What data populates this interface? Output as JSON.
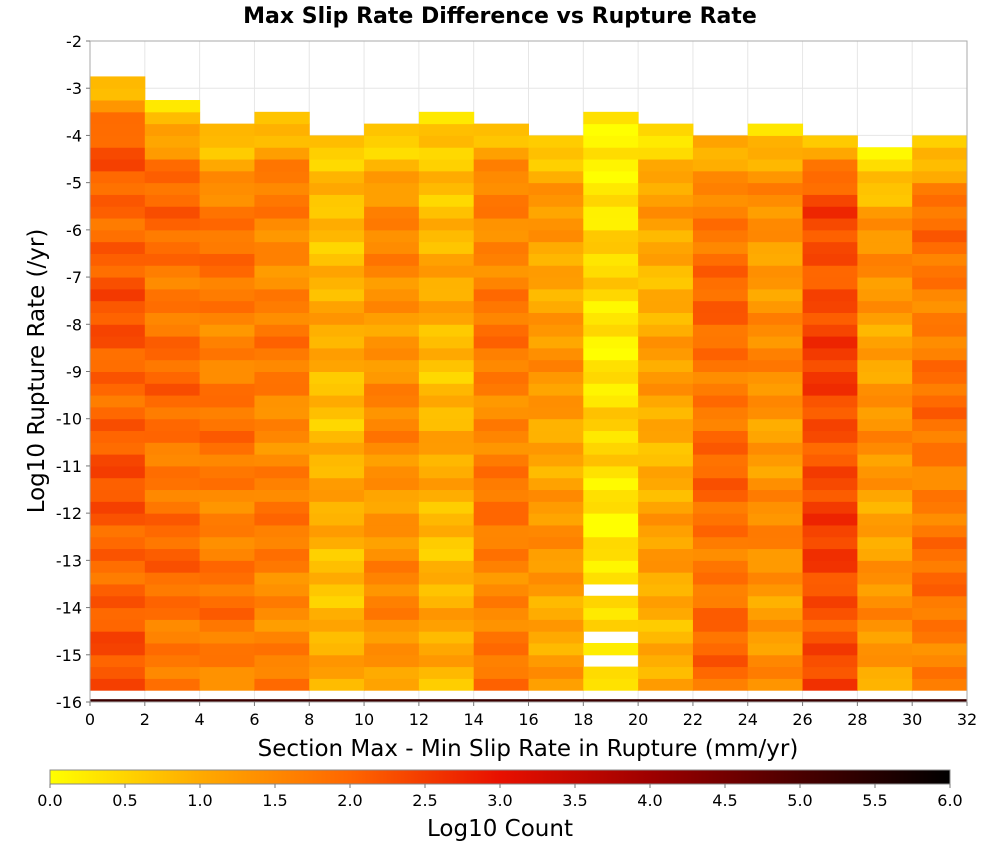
{
  "chart_data": {
    "type": "heatmap",
    "title": "Max Slip Rate Difference vs Rupture Rate",
    "xlabel": "Section Max - Min Slip Rate in Rupture (mm/yr)",
    "ylabel": "Log10 Rupture Rate (/yr)",
    "xlim": [
      0,
      32
    ],
    "ylim": [
      -16,
      -2
    ],
    "x_ticks": [
      "0",
      "2",
      "4",
      "6",
      "8",
      "10",
      "12",
      "14",
      "16",
      "18",
      "20",
      "22",
      "24",
      "26",
      "28",
      "30",
      "32"
    ],
    "y_ticks": [
      "-2",
      "-3",
      "-4",
      "-5",
      "-6",
      "-7",
      "-8",
      "-9",
      "-10",
      "-11",
      "-12",
      "-13",
      "-14",
      "-15",
      "-16"
    ],
    "x_bin_width": 2,
    "y_bin_height": 0.25,
    "columns": [
      {
        "x0": 0,
        "top": -2.75,
        "base": 2.1,
        "phase": 0.0
      },
      {
        "x0": 2,
        "top": -3.25,
        "base": 1.85,
        "phase": 1.3
      },
      {
        "x0": 4,
        "top": -3.75,
        "base": 1.7,
        "phase": 2.1
      },
      {
        "x0": 6,
        "top": -3.5,
        "base": 1.6,
        "phase": 0.7
      },
      {
        "x0": 8,
        "top": -4.0,
        "base": 0.9,
        "phase": 3.3
      },
      {
        "x0": 10,
        "top": -3.75,
        "base": 1.4,
        "phase": 1.9
      },
      {
        "x0": 12,
        "top": -3.5,
        "base": 0.9,
        "phase": 2.6
      },
      {
        "x0": 14,
        "top": -3.75,
        "base": 1.65,
        "phase": 0.4
      },
      {
        "x0": 16,
        "top": -4.0,
        "base": 1.2,
        "phase": 4.0
      },
      {
        "x0": 18,
        "top": -3.5,
        "base": 0.35,
        "phase": 5.2
      },
      {
        "x0": 20,
        "top": -3.75,
        "base": 1.05,
        "phase": 1.1
      },
      {
        "x0": 22,
        "top": -4.0,
        "base": 1.85,
        "phase": 2.9
      },
      {
        "x0": 24,
        "top": -3.75,
        "base": 1.35,
        "phase": 3.8
      },
      {
        "x0": 26,
        "top": -4.0,
        "base": 2.35,
        "phase": 0.9
      },
      {
        "x0": 28,
        "top": -4.25,
        "base": 1.25,
        "phase": 2.2
      },
      {
        "x0": 30,
        "top": -4.0,
        "base": 1.75,
        "phase": 4.6
      }
    ],
    "bottom_row": {
      "y": -16,
      "value": 5.2
    },
    "empty_cells": [
      {
        "x0": 18,
        "y0": -13.75
      },
      {
        "x0": 18,
        "y0": -14.75
      },
      {
        "x0": 18,
        "y0": -15.25
      }
    ],
    "colorbar": {
      "label": "Log10 Count",
      "min": 0,
      "max": 6,
      "ticks": [
        "0.0",
        "0.5",
        "1.0",
        "1.5",
        "2.0",
        "2.5",
        "3.0",
        "3.5",
        "4.0",
        "4.5",
        "5.0",
        "5.5",
        "6.0"
      ],
      "stops": [
        {
          "v": 0.0,
          "color": "#ffff00"
        },
        {
          "v": 1.0,
          "color": "#ffaa00"
        },
        {
          "v": 2.0,
          "color": "#ff6600"
        },
        {
          "v": 3.0,
          "color": "#e81000"
        },
        {
          "v": 4.0,
          "color": "#9e0000"
        },
        {
          "v": 5.0,
          "color": "#4a0000"
        },
        {
          "v": 6.0,
          "color": "#000000"
        }
      ]
    },
    "grid": true
  }
}
